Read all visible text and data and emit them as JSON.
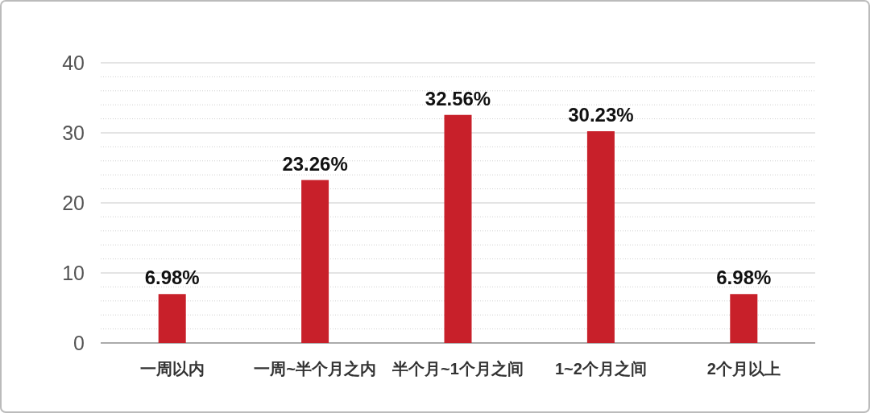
{
  "chart_data": {
    "type": "bar",
    "categories": [
      "一周以内",
      "一周~半个月之内",
      "半个月~1个月之间",
      "1~2个月之间",
      "2个月以上"
    ],
    "values": [
      6.98,
      23.26,
      32.56,
      30.23,
      6.98
    ],
    "color": "#c8202a",
    "ylim": [
      0,
      40
    ],
    "yticks": [
      0,
      {
        "value": 2,
        "label": null
      },
      {
        "value": 4,
        "label": null
      },
      {
        "value": 6,
        "label": null
      },
      {
        "value": 8,
        "label": null
      },
      10,
      {
        "value": 12,
        "label": null
      },
      {
        "value": 14,
        "label": null
      },
      {
        "value": 16,
        "label": null
      },
      {
        "value": 18,
        "label": null
      },
      20,
      {
        "value": 22,
        "label": null
      },
      {
        "value": 24,
        "label": null
      },
      {
        "value": 26,
        "label": null
      },
      {
        "value": 28,
        "label": null
      },
      30,
      {
        "value": 32,
        "label": null
      },
      {
        "value": 34,
        "label": null
      },
      {
        "value": 36,
        "label": null
      },
      {
        "value": 38,
        "label": null
      },
      40
    ],
    "grid": "y",
    "value_labels": [
      "6.98%",
      "23.26%",
      "32.56%",
      "30.23%",
      "6.98%"
    ]
  }
}
